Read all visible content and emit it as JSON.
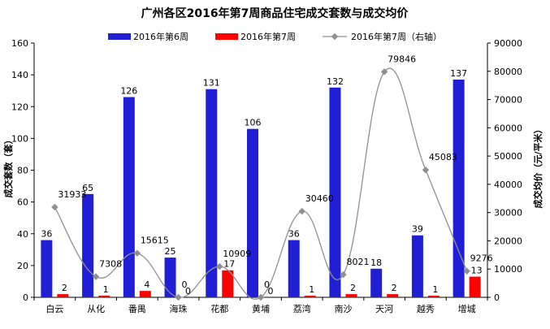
{
  "chart_data": {
    "type": "bar",
    "title": "广州各区2016年第7周商品住宅成交套数与成交均价",
    "categories": [
      "白云",
      "从化",
      "番禺",
      "海珠",
      "花都",
      "黄埔",
      "荔湾",
      "南沙",
      "天河",
      "越秀",
      "增城"
    ],
    "series": [
      {
        "name": "2016年第6周",
        "type": "bar",
        "axis": "left",
        "color": "#1f1fd6",
        "values": [
          36,
          65,
          126,
          25,
          131,
          106,
          36,
          132,
          18,
          39,
          137
        ]
      },
      {
        "name": "2016年第7周",
        "type": "bar",
        "axis": "left",
        "color": "#ff0000",
        "values": [
          2,
          1,
          4,
          0,
          17,
          0,
          1,
          2,
          2,
          1,
          13
        ]
      },
      {
        "name": "2016年第7周（右轴）",
        "type": "line",
        "axis": "right",
        "color": "#909090",
        "values": [
          31933,
          7308,
          15615,
          0,
          10909,
          0,
          30460,
          8021,
          79846,
          45083,
          9276
        ]
      }
    ],
    "ylabel": "成交套数（套）",
    "y2label": "成交均价（元/平米）",
    "ylim": [
      0,
      160
    ],
    "y2lim": [
      0,
      90000
    ],
    "yticks": [
      0,
      20,
      40,
      60,
      80,
      100,
      120,
      140,
      160
    ],
    "y2ticks": [
      0,
      10000,
      20000,
      30000,
      40000,
      50000,
      60000,
      70000,
      80000,
      90000
    ],
    "line_labels": [
      "31933",
      "7308",
      "15615",
      "0",
      "10909",
      "0",
      "30460",
      "8021",
      "79846",
      "45083",
      "9276"
    ],
    "grid": false,
    "legend_position": "top"
  }
}
